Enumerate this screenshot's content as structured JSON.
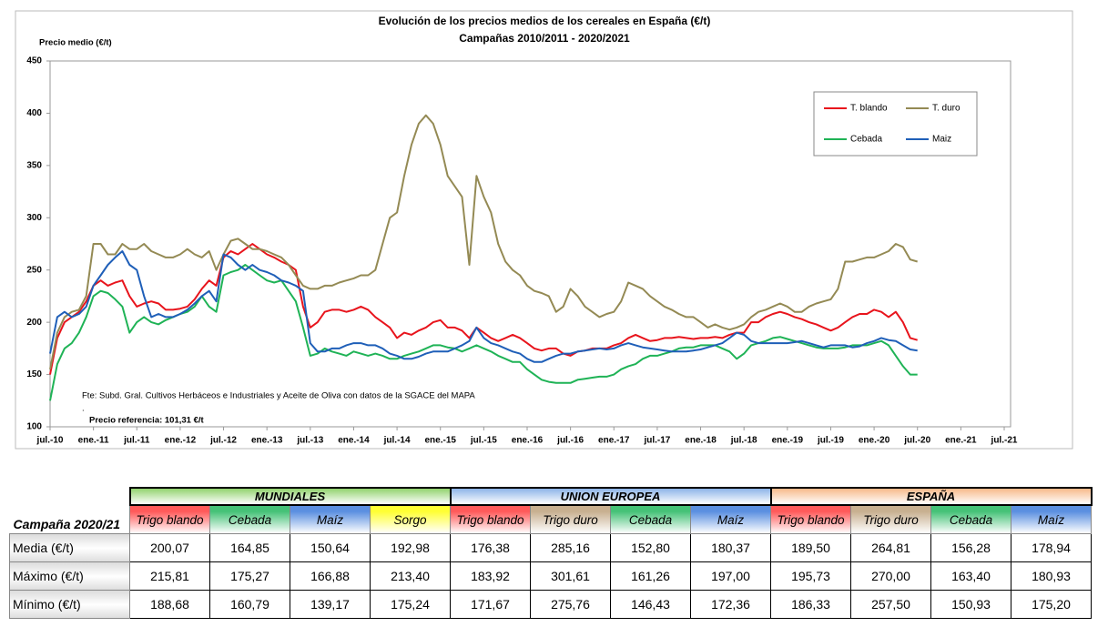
{
  "chart_data": {
    "type": "line",
    "title": "Evolución de los precios medios de los cereales en España (€/t)",
    "subtitle": "Campañas 2010/2011 - 2020/2021",
    "y_label": "Precio medio (€/t)",
    "annotations": [
      "Fte: Subd. Gral. Cultivos Herbáceos e Industriales y Aceite de Oliva con datos de la SGACE del MAPA",
      ".",
      "Precio referencia: 101,31 €/t"
    ],
    "categories": [
      "jul.-10",
      null,
      null,
      null,
      null,
      null,
      "ene.-11",
      null,
      null,
      null,
      null,
      null,
      "jul.-11",
      null,
      null,
      null,
      null,
      null,
      "ene.-12",
      null,
      null,
      null,
      null,
      null,
      "jul.-12",
      null,
      null,
      null,
      null,
      null,
      "ene.-13",
      null,
      null,
      null,
      null,
      null,
      "jul.-13",
      null,
      null,
      null,
      null,
      null,
      "ene.-14",
      null,
      null,
      null,
      null,
      null,
      "jul.-14",
      null,
      null,
      null,
      null,
      null,
      "ene.-15",
      null,
      null,
      null,
      null,
      null,
      "jul.-15",
      null,
      null,
      null,
      null,
      null,
      "ene.-16",
      null,
      null,
      null,
      null,
      null,
      "jul.-16",
      null,
      null,
      null,
      null,
      null,
      "ene.-17",
      null,
      null,
      null,
      null,
      null,
      "jul.-17",
      null,
      null,
      null,
      null,
      null,
      "ene.-18",
      null,
      null,
      null,
      null,
      null,
      "jul.-18",
      null,
      null,
      null,
      null,
      null,
      "ene.-19",
      null,
      null,
      null,
      null,
      null,
      "jul.-19",
      null,
      null,
      null,
      null,
      null,
      "ene.-20",
      null,
      null,
      null,
      null,
      null,
      "jul.-20",
      null,
      null,
      null,
      null,
      null,
      "ene.-21",
      null,
      null,
      null,
      null,
      null,
      "jul.-21"
    ],
    "series": [
      {
        "name": "T. blando",
        "color": "#e8141c",
        "values": [
          150,
          185,
          200,
          205,
          210,
          220,
          235,
          240,
          235,
          238,
          240,
          225,
          215,
          218,
          220,
          218,
          212,
          212,
          213,
          215,
          222,
          232,
          240,
          235,
          262,
          268,
          265,
          270,
          275,
          270,
          265,
          262,
          258,
          255,
          250,
          215,
          195,
          200,
          210,
          212,
          212,
          210,
          212,
          215,
          212,
          205,
          200,
          195,
          185,
          190,
          188,
          192,
          195,
          200,
          202,
          195,
          195,
          192,
          185,
          195,
          190,
          185,
          182,
          185,
          188,
          185,
          180,
          175,
          173,
          175,
          175,
          170,
          168,
          172,
          173,
          175,
          175,
          175,
          178,
          180,
          185,
          188,
          185,
          182,
          183,
          185,
          185,
          186,
          185,
          184,
          185,
          185,
          186,
          185,
          188,
          190,
          190,
          200,
          200,
          205,
          208,
          210,
          208,
          205,
          203,
          200,
          198,
          195,
          192,
          195,
          200,
          205,
          208,
          208,
          212,
          210,
          205,
          210,
          200,
          185,
          183,
          null,
          null,
          null,
          null,
          null,
          null,
          null,
          null,
          null,
          null,
          null,
          null
        ]
      },
      {
        "name": "T. duro",
        "color": "#948a54",
        "values": [
          155,
          190,
          205,
          210,
          212,
          225,
          275,
          275,
          265,
          265,
          275,
          270,
          270,
          275,
          268,
          265,
          262,
          262,
          265,
          270,
          265,
          262,
          268,
          250,
          265,
          278,
          280,
          275,
          270,
          270,
          268,
          265,
          262,
          255,
          245,
          235,
          232,
          232,
          235,
          235,
          238,
          240,
          242,
          245,
          245,
          250,
          275,
          300,
          305,
          340,
          370,
          390,
          398,
          390,
          370,
          340,
          330,
          320,
          255,
          340,
          320,
          305,
          275,
          258,
          250,
          245,
          235,
          230,
          228,
          225,
          210,
          215,
          232,
          225,
          215,
          210,
          205,
          208,
          210,
          220,
          238,
          235,
          232,
          225,
          220,
          215,
          212,
          208,
          205,
          205,
          200,
          195,
          198,
          195,
          193,
          195,
          198,
          205,
          210,
          212,
          215,
          218,
          215,
          210,
          210,
          215,
          218,
          220,
          222,
          232,
          258,
          258,
          260,
          262,
          262,
          265,
          268,
          275,
          272,
          260,
          258,
          null,
          null,
          null,
          null,
          null,
          null,
          null,
          null,
          null,
          null,
          null,
          null
        ]
      },
      {
        "name": "Cebada",
        "color": "#1fb356",
        "values": [
          125,
          160,
          175,
          180,
          190,
          205,
          225,
          230,
          228,
          222,
          215,
          190,
          200,
          205,
          200,
          198,
          202,
          205,
          208,
          210,
          215,
          225,
          215,
          210,
          245,
          248,
          250,
          255,
          250,
          245,
          240,
          238,
          240,
          230,
          220,
          195,
          168,
          170,
          175,
          172,
          170,
          168,
          172,
          170,
          168,
          170,
          168,
          165,
          165,
          168,
          170,
          172,
          175,
          178,
          178,
          176,
          175,
          172,
          175,
          178,
          175,
          172,
          168,
          165,
          162,
          162,
          155,
          150,
          145,
          143,
          142,
          142,
          142,
          145,
          146,
          147,
          148,
          148,
          150,
          155,
          158,
          160,
          165,
          168,
          168,
          170,
          172,
          175,
          176,
          176,
          178,
          178,
          178,
          175,
          172,
          165,
          170,
          178,
          180,
          182,
          185,
          186,
          184,
          182,
          180,
          178,
          176,
          175,
          175,
          175,
          176,
          178,
          178,
          178,
          180,
          182,
          178,
          168,
          158,
          150,
          150,
          null,
          null,
          null,
          null,
          null,
          null,
          null,
          null,
          null,
          null,
          null,
          null
        ]
      },
      {
        "name": "Maiz",
        "color": "#1f5fb8",
        "values": [
          170,
          205,
          210,
          205,
          208,
          215,
          235,
          245,
          255,
          262,
          268,
          255,
          250,
          225,
          205,
          208,
          205,
          205,
          208,
          212,
          218,
          225,
          230,
          220,
          265,
          262,
          255,
          250,
          255,
          250,
          248,
          245,
          240,
          238,
          235,
          230,
          180,
          172,
          172,
          175,
          175,
          178,
          180,
          180,
          178,
          178,
          175,
          170,
          168,
          165,
          165,
          167,
          170,
          172,
          172,
          172,
          175,
          178,
          182,
          195,
          185,
          180,
          178,
          175,
          172,
          170,
          165,
          162,
          162,
          165,
          168,
          170,
          170,
          172,
          173,
          174,
          175,
          174,
          175,
          178,
          180,
          178,
          176,
          175,
          174,
          173,
          172,
          172,
          172,
          173,
          174,
          176,
          178,
          180,
          185,
          190,
          188,
          182,
          180,
          180,
          180,
          180,
          180,
          181,
          182,
          180,
          178,
          176,
          178,
          178,
          178,
          176,
          177,
          180,
          182,
          185,
          183,
          182,
          178,
          174,
          173,
          null,
          null,
          null,
          null,
          null,
          null,
          null,
          null,
          null,
          null,
          null,
          null
        ]
      }
    ],
    "ylim": [
      100,
      450
    ],
    "yticks": [
      100,
      150,
      200,
      250,
      300,
      350,
      400,
      450
    ],
    "grid": false,
    "legend": "upper right"
  },
  "table": {
    "corner": "Campaña 2020/21",
    "groups": [
      {
        "label": "MUNDIALES",
        "color": "#92d36e",
        "columns": [
          {
            "name": "Trigo blando",
            "color": "#ff5a5a"
          },
          {
            "name": "Cebada",
            "color": "#45c277"
          },
          {
            "name": "Maíz",
            "color": "#5b8fe0"
          },
          {
            "name": "Sorgo",
            "color": "#ffff33"
          }
        ]
      },
      {
        "label": "UNION EUROPEA",
        "color": "#8db4e8",
        "columns": [
          {
            "name": "Trigo blando",
            "color": "#ff5a5a"
          },
          {
            "name": "Trigo duro",
            "color": "#c8b090"
          },
          {
            "name": "Cebada",
            "color": "#45c277"
          },
          {
            "name": "Maíz",
            "color": "#5b8fe0"
          }
        ]
      },
      {
        "label": "ESPAÑA",
        "color": "#f7b98a",
        "columns": [
          {
            "name": "Trigo blando",
            "color": "#ff5a5a"
          },
          {
            "name": "Trigo duro",
            "color": "#c8b090"
          },
          {
            "name": "Cebada",
            "color": "#45c277"
          },
          {
            "name": "Maíz",
            "color": "#5b8fe0"
          }
        ]
      }
    ],
    "rows": [
      {
        "label": "Media (€/t)",
        "values": [
          "200,07",
          "164,85",
          "150,64",
          "192,98",
          "176,38",
          "285,16",
          "152,80",
          "180,37",
          "189,50",
          "264,81",
          "156,28",
          "178,94"
        ]
      },
      {
        "label": "Máximo (€/t)",
        "values": [
          "215,81",
          "175,27",
          "166,88",
          "213,40",
          "183,92",
          "301,61",
          "161,26",
          "197,00",
          "195,73",
          "270,00",
          "163,40",
          "180,93"
        ]
      },
      {
        "label": "Mínimo (€/t)",
        "values": [
          "188,68",
          "160,79",
          "139,17",
          "175,24",
          "171,67",
          "275,76",
          "146,43",
          "172,36",
          "186,33",
          "257,50",
          "150,93",
          "175,20"
        ]
      }
    ]
  }
}
